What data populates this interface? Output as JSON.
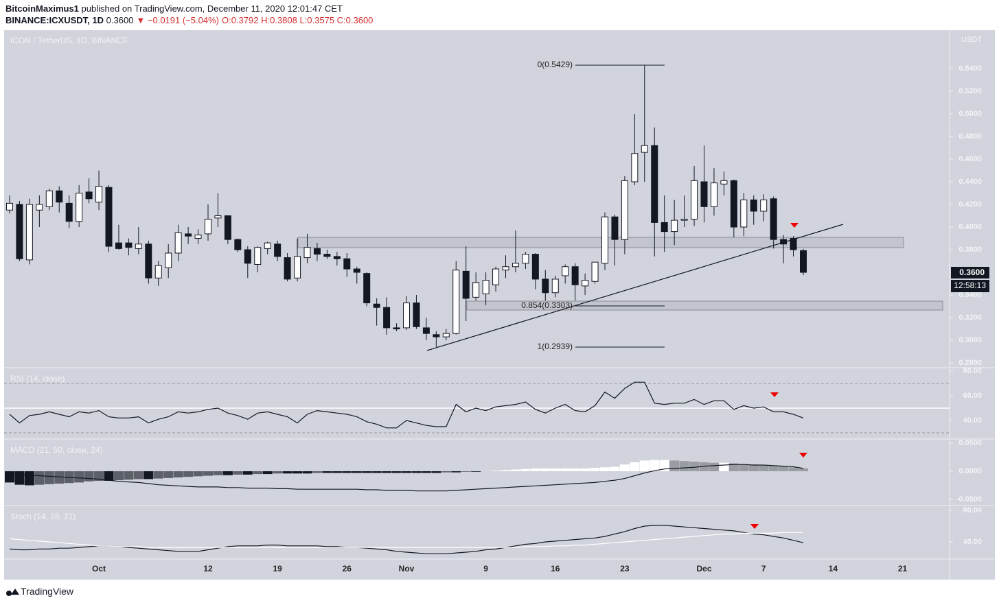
{
  "header": {
    "publisher": "BitcoinMaximus1",
    "published": "published on TradingView.com, December 11, 2020 12:01:47 CET",
    "symbol": "BINANCE:ICXUSDT, 1D",
    "price": "0.3600",
    "change": "▼ −0.0191 (−5.04%)",
    "ohlc": "O:0.3792 H:0.3808 L:0.3575 C:0.3600"
  },
  "chart_data": [
    {
      "type": "candlestick",
      "title": "ICON / TetherUS, 1D, BINANCE",
      "currency": "USDT",
      "categories": [
        null,
        null,
        null,
        null,
        null,
        null,
        null,
        null,
        null,
        "Oct",
        null,
        null,
        null,
        null,
        null,
        null,
        null,
        null,
        null,
        null,
        "12",
        null,
        null,
        null,
        null,
        null,
        null,
        "19",
        null,
        null,
        null,
        null,
        null,
        null,
        "26",
        null,
        null,
        null,
        null,
        null,
        "Nov",
        null,
        null,
        null,
        null,
        null,
        null,
        null,
        "9",
        null,
        null,
        null,
        null,
        null,
        null,
        "16",
        null,
        null,
        null,
        null,
        null,
        null,
        "23",
        null,
        null,
        null,
        null,
        null,
        null,
        null,
        "Dec",
        null,
        null,
        null,
        null,
        null,
        "7",
        null,
        null,
        null,
        null,
        null,
        null,
        "14",
        null,
        null,
        null,
        null,
        null,
        null,
        "21",
        null,
        null,
        null,
        null
      ],
      "open": [
        0.415,
        0.42,
        0.371,
        0.415,
        0.418,
        0.432,
        0.421,
        0.405,
        0.431,
        0.422,
        0.435,
        0.386,
        0.386,
        0.381,
        0.385,
        0.355,
        0.364,
        0.377,
        0.394,
        0.39,
        0.394,
        0.408,
        0.41,
        0.389,
        0.38,
        0.367,
        0.381,
        0.385,
        0.373,
        0.355,
        0.373,
        0.381,
        0.376,
        0.374,
        0.372,
        0.363,
        0.359,
        0.332,
        0.329,
        0.311,
        0.311,
        0.333,
        0.311,
        0.305,
        0.303,
        0.306,
        0.361,
        0.338,
        0.341,
        0.349,
        0.362,
        0.365,
        0.368,
        0.376,
        0.354,
        0.342,
        0.357,
        0.365,
        0.348,
        0.352,
        0.368,
        0.409,
        0.389,
        0.44,
        0.466,
        0.472,
        0.404,
        0.396,
        0.406,
        0.407,
        0.44,
        0.418,
        0.438,
        0.441,
        0.4,
        0.424,
        0.414,
        0.425,
        0.389,
        0.39,
        0.3792,
        null,
        null,
        null,
        null,
        null,
        null,
        null,
        null,
        null,
        null,
        null,
        null,
        null,
        null
      ],
      "high": [
        0.428,
        0.423,
        0.425,
        0.428,
        0.434,
        0.436,
        0.428,
        0.437,
        0.443,
        0.45,
        0.437,
        0.402,
        0.39,
        0.4,
        0.388,
        0.37,
        0.385,
        0.402,
        0.4,
        0.398,
        0.42,
        0.43,
        0.41,
        0.39,
        0.383,
        0.383,
        0.387,
        0.388,
        0.377,
        0.39,
        0.394,
        0.386,
        0.38,
        0.378,
        0.377,
        0.365,
        0.36,
        0.337,
        0.338,
        0.315,
        0.339,
        0.34,
        0.32,
        0.308,
        0.31,
        0.37,
        0.383,
        0.36,
        0.36,
        0.365,
        0.375,
        0.397,
        0.378,
        0.377,
        0.362,
        0.357,
        0.367,
        0.368,
        0.359,
        0.368,
        0.413,
        0.411,
        0.445,
        0.5,
        0.5429,
        0.488,
        0.428,
        0.424,
        0.428,
        0.454,
        0.472,
        0.452,
        0.449,
        0.442,
        0.43,
        0.428,
        0.429,
        0.427,
        0.393,
        0.392,
        0.3808,
        null,
        null,
        null,
        null,
        null,
        null,
        null,
        null,
        null,
        null,
        null,
        null,
        null,
        null
      ],
      "low": [
        0.412,
        0.37,
        0.367,
        0.4,
        0.415,
        0.413,
        0.399,
        0.4,
        0.421,
        0.415,
        0.378,
        0.38,
        0.375,
        0.376,
        0.35,
        0.348,
        0.355,
        0.37,
        0.385,
        0.385,
        0.388,
        0.4,
        0.385,
        0.378,
        0.355,
        0.36,
        0.376,
        0.37,
        0.352,
        0.352,
        0.368,
        0.37,
        0.372,
        0.366,
        0.356,
        0.35,
        0.33,
        0.313,
        0.305,
        0.308,
        0.309,
        0.31,
        0.3,
        0.2939,
        0.3,
        0.305,
        0.317,
        0.335,
        0.331,
        0.343,
        0.355,
        0.36,
        0.363,
        0.345,
        0.335,
        0.338,
        0.35,
        0.335,
        0.34,
        0.35,
        0.362,
        0.366,
        0.376,
        0.437,
        0.44,
        0.374,
        0.378,
        0.384,
        0.4,
        0.401,
        0.404,
        0.41,
        0.428,
        0.391,
        0.392,
        0.402,
        0.405,
        0.381,
        0.368,
        0.374,
        0.3575,
        null,
        null,
        null,
        null,
        null,
        null,
        null,
        null,
        null,
        null,
        null,
        null,
        null,
        null
      ],
      "close": [
        0.421,
        0.372,
        0.42,
        0.42,
        0.432,
        0.422,
        0.405,
        0.43,
        0.425,
        0.436,
        0.383,
        0.381,
        0.382,
        0.385,
        0.355,
        0.366,
        0.377,
        0.395,
        0.392,
        0.393,
        0.407,
        0.41,
        0.389,
        0.38,
        0.368,
        0.382,
        0.386,
        0.374,
        0.354,
        0.374,
        0.382,
        0.376,
        0.374,
        0.372,
        0.363,
        0.36,
        0.333,
        0.329,
        0.311,
        0.31,
        0.333,
        0.312,
        0.306,
        0.303,
        0.306,
        0.362,
        0.337,
        0.351,
        0.353,
        0.363,
        0.365,
        0.368,
        0.376,
        0.354,
        0.342,
        0.354,
        0.365,
        0.349,
        0.353,
        0.369,
        0.409,
        0.389,
        0.441,
        0.465,
        0.472,
        0.404,
        0.396,
        0.406,
        0.407,
        0.441,
        0.418,
        0.439,
        0.441,
        0.4,
        0.424,
        0.414,
        0.424,
        0.389,
        0.385,
        0.38,
        0.36,
        null,
        null,
        null,
        null,
        null,
        null,
        null,
        null,
        null,
        null,
        null,
        null,
        null,
        null
      ],
      "up_color": "#ffffff",
      "down_color": "#131722",
      "ylim": [
        0.2764,
        0.5733
      ],
      "yticks": [
        {
          "value": 0.28,
          "label": "0.2800"
        },
        {
          "value": 0.3,
          "label": "0.3000"
        },
        {
          "value": 0.32,
          "label": "0.3200"
        },
        {
          "value": 0.34,
          "label": "0.3400"
        },
        {
          "value": 0.36,
          "label": "0.3600"
        },
        {
          "value": 0.38,
          "label": "0.3800"
        },
        {
          "value": 0.4,
          "label": "0.4000"
        },
        {
          "value": 0.42,
          "label": "0.4200"
        },
        {
          "value": 0.44,
          "label": "0.4400"
        },
        {
          "value": 0.46,
          "label": "0.4600"
        },
        {
          "value": 0.48,
          "label": "0.4800"
        },
        {
          "value": 0.5,
          "label": "0.5000"
        },
        {
          "value": 0.52,
          "label": "0.5200"
        },
        {
          "value": 0.54,
          "label": "0.5400"
        }
      ],
      "annotations": [
        "0(0.5429)",
        "0.854(0.3303)",
        "1(0.2939)"
      ],
      "price_tag": "0.3600",
      "countdown": "12:58:13"
    },
    {
      "type": "line",
      "title": "RSI (14, close)",
      "series": [
        {
          "color": "#131722",
          "values": [
            45,
            38,
            44,
            45,
            47,
            45,
            43,
            47,
            46,
            48,
            43,
            42,
            42,
            43,
            38,
            41,
            43,
            47,
            46,
            47,
            49,
            50,
            46,
            44,
            41,
            46,
            47,
            45,
            43,
            38,
            45,
            48,
            47,
            46,
            45,
            43,
            39,
            37,
            34,
            34,
            40,
            38,
            36,
            35,
            35,
            53,
            47,
            50,
            48,
            51,
            52,
            53,
            55,
            49,
            46,
            50,
            53,
            48,
            47,
            52,
            63,
            58,
            66,
            71,
            71,
            54,
            53,
            54,
            54,
            57,
            53,
            56,
            56,
            49,
            52,
            50,
            51,
            47,
            47,
            45,
            42
          ]
        }
      ],
      "ylim": [
        25,
        82.2
      ],
      "yticks": [
        {
          "value": 40,
          "label": "40.00"
        },
        {
          "value": 60,
          "label": "60.00"
        },
        {
          "value": 80,
          "label": "80.00"
        }
      ]
    },
    {
      "type": "macd",
      "title": "MACD (21, 50, close, 24)",
      "color": "#131722",
      "histogram": [
        -0.02,
        -0.024,
        -0.025,
        -0.024,
        -0.023,
        -0.022,
        -0.021,
        -0.02,
        -0.018,
        -0.017,
        -0.017,
        -0.016,
        -0.015,
        -0.014,
        -0.014,
        -0.013,
        -0.012,
        -0.011,
        -0.01,
        -0.009,
        -0.008,
        -0.007,
        -0.007,
        -0.006,
        -0.006,
        -0.005,
        -0.005,
        -0.004,
        -0.004,
        -0.004,
        -0.004,
        -0.003,
        -0.003,
        -0.003,
        -0.003,
        -0.003,
        -0.003,
        -0.003,
        -0.003,
        -0.003,
        -0.003,
        -0.003,
        -0.003,
        -0.003,
        -0.002,
        -0.002,
        -0.001,
        -0.001,
        0,
        0.001,
        0.002,
        0.003,
        0.004,
        0.005,
        0.005,
        0.005,
        0.005,
        0.005,
        0.005,
        0.006,
        0.007,
        0.008,
        0.012,
        0.016,
        0.019,
        0.02,
        0.02,
        0.019,
        0.018,
        0.017,
        0.016,
        0.015,
        0.015,
        0.014,
        0.013,
        0.012,
        0.011,
        0.01,
        0.009,
        0.007,
        0.005
      ],
      "values": [
        -0.003,
        -0.005,
        -0.007,
        -0.008,
        -0.009,
        -0.01,
        -0.011,
        -0.012,
        -0.013,
        -0.014,
        -0.016,
        -0.018,
        -0.019,
        -0.02,
        -0.022,
        -0.024,
        -0.025,
        -0.026,
        -0.027,
        -0.028,
        -0.028,
        -0.028,
        -0.029,
        -0.029,
        -0.03,
        -0.03,
        -0.03,
        -0.031,
        -0.031,
        -0.032,
        -0.032,
        -0.032,
        -0.032,
        -0.032,
        -0.032,
        -0.032,
        -0.033,
        -0.033,
        -0.034,
        -0.034,
        -0.034,
        -0.035,
        -0.035,
        -0.035,
        -0.035,
        -0.034,
        -0.033,
        -0.032,
        -0.031,
        -0.03,
        -0.029,
        -0.028,
        -0.027,
        -0.026,
        -0.025,
        -0.024,
        -0.023,
        -0.022,
        -0.021,
        -0.02,
        -0.018,
        -0.016,
        -0.013,
        -0.008,
        -0.003,
        0.001,
        0.004,
        0.005,
        0.006,
        0.007,
        0.009,
        0.01,
        0.011,
        0.012,
        0.012,
        0.011,
        0.011,
        0.01,
        0.009,
        0.008,
        0.005
      ],
      "ylim": [
        -0.061,
        0.0561
      ],
      "yticks": [
        {
          "value": -0.05,
          "label": "-0.0500"
        },
        {
          "value": 0,
          "label": "0.0000"
        },
        {
          "value": 0.05,
          "label": "0.0500"
        }
      ]
    },
    {
      "type": "line",
      "title": "Stoch (14, 28, 21)",
      "series": [
        {
          "color": "#131722",
          "values": [
            31,
            30,
            30,
            31,
            31,
            32,
            32,
            33,
            34,
            35,
            35,
            34,
            33,
            32,
            31,
            30,
            29,
            28,
            28,
            28,
            30,
            32,
            34,
            35,
            35,
            35,
            36,
            36,
            35,
            35,
            35,
            35,
            34,
            34,
            33,
            33,
            32,
            31,
            30,
            28,
            27,
            26,
            25,
            25,
            25,
            26,
            27,
            28,
            30,
            31,
            33,
            35,
            37,
            38,
            40,
            41,
            42,
            43,
            44,
            45,
            47,
            50,
            53,
            57,
            60,
            61,
            61,
            60,
            59,
            58,
            57,
            56,
            55,
            54,
            52,
            50,
            49,
            47,
            45,
            42,
            39
          ]
        },
        {
          "color": "#ffffff",
          "values": [
            44,
            43,
            42,
            41,
            40,
            39,
            38,
            37,
            36,
            35,
            35,
            34,
            34,
            34,
            33,
            33,
            33,
            33,
            33,
            33,
            33,
            33,
            33,
            33,
            33,
            33,
            33,
            33,
            33,
            33,
            33,
            33,
            33,
            33,
            33,
            33,
            33,
            33,
            33,
            33,
            33,
            33,
            33,
            33,
            33,
            33,
            33,
            33,
            33,
            33,
            33,
            33,
            34,
            34,
            34,
            35,
            35,
            36,
            36,
            37,
            38,
            39,
            40,
            41,
            42,
            43,
            44,
            45,
            46,
            47,
            48,
            49,
            50,
            50,
            51,
            51,
            51,
            51,
            52,
            52,
            52
          ]
        }
      ],
      "ylim": [
        18.3,
        85.2
      ],
      "yticks": [
        {
          "value": 40,
          "label": "40.00"
        },
        {
          "value": 80,
          "label": "80.00"
        }
      ]
    }
  ],
  "footer": {
    "brand": "TradingView"
  }
}
